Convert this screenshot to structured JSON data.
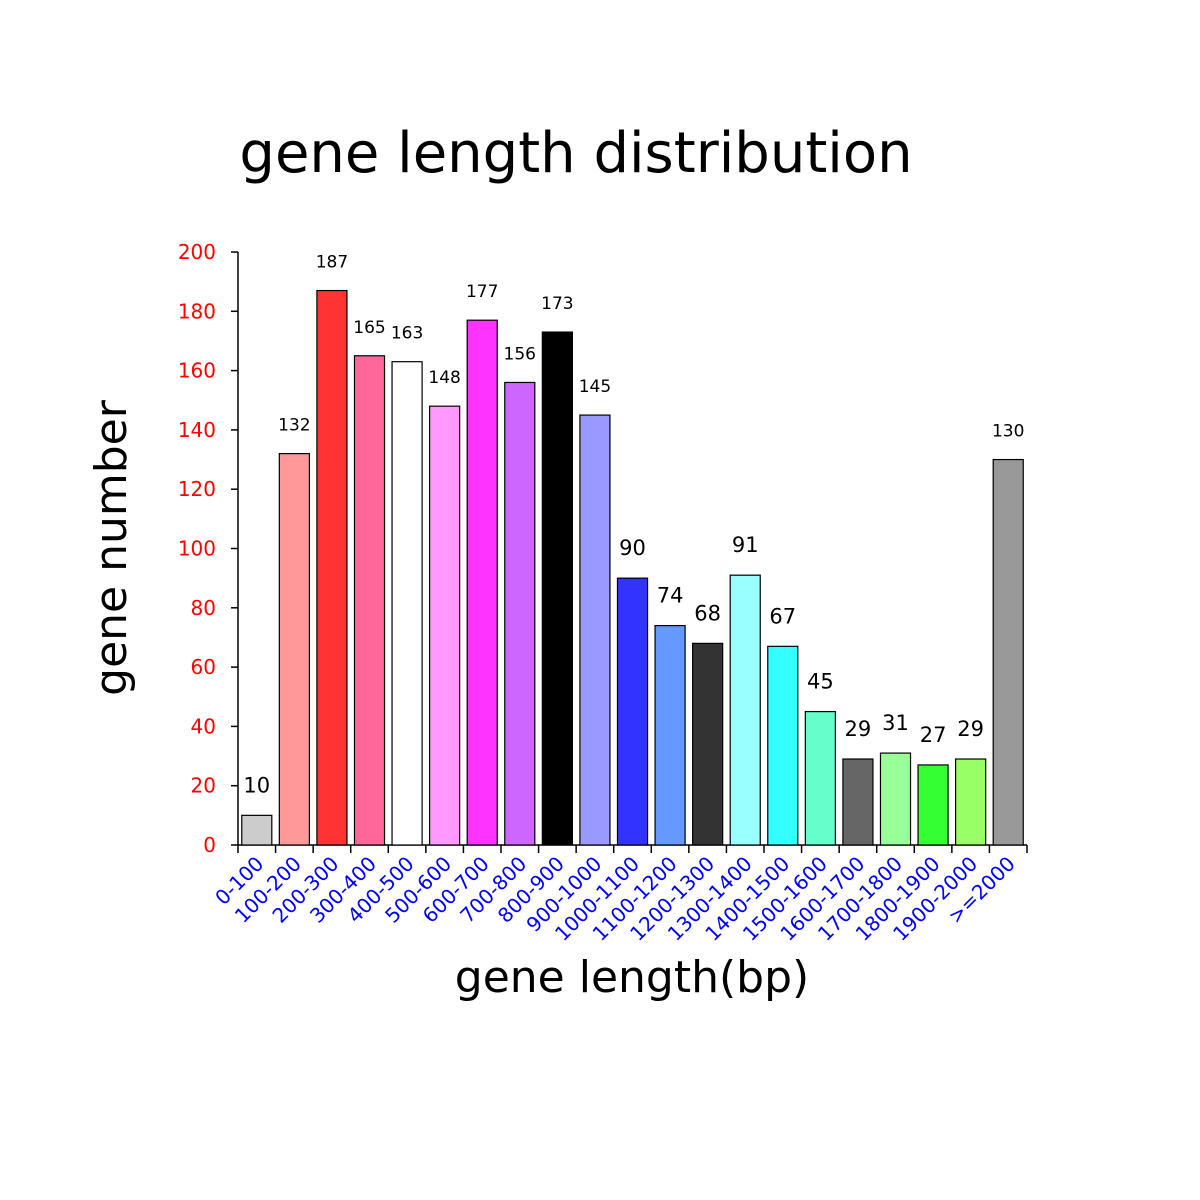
{
  "chart_data": {
    "type": "bar",
    "title": "gene length distribution",
    "xlabel": "gene length(bp)",
    "ylabel": "gene number",
    "ylim": [
      0,
      200
    ],
    "yticks": [
      0,
      20,
      40,
      60,
      80,
      100,
      120,
      140,
      160,
      180,
      200
    ],
    "categories": [
      "0-100",
      "100-200",
      "200-300",
      "300-400",
      "400-500",
      "500-600",
      "600-700",
      "700-800",
      "800-900",
      "900-1000",
      "1000-1100",
      "1100-1200",
      "1200-1300",
      "1300-1400",
      "1400-1500",
      "1500-1600",
      "1600-1700",
      "1700-1800",
      "1800-1900",
      "1900-2000",
      ">=2000"
    ],
    "values": [
      10,
      132,
      187,
      165,
      163,
      148,
      177,
      156,
      173,
      145,
      90,
      74,
      68,
      91,
      67,
      45,
      29,
      31,
      27,
      29,
      130
    ],
    "bar_colors": [
      "#cccccc",
      "#ff9999",
      "#ff3333",
      "#ff6699",
      "#ffffff",
      "#ff99ff",
      "#ff33ff",
      "#cc66ff",
      "#000000",
      "#9999ff",
      "#3333ff",
      "#6699ff",
      "#333333",
      "#99ffff",
      "#33ffff",
      "#66ffcc",
      "#666666",
      "#99ff99",
      "#33ff33",
      "#99ff66",
      "#999999"
    ],
    "ytick_color": "#ff0000",
    "xtick_color": "#0000ff",
    "grid": false,
    "legend": "none"
  }
}
